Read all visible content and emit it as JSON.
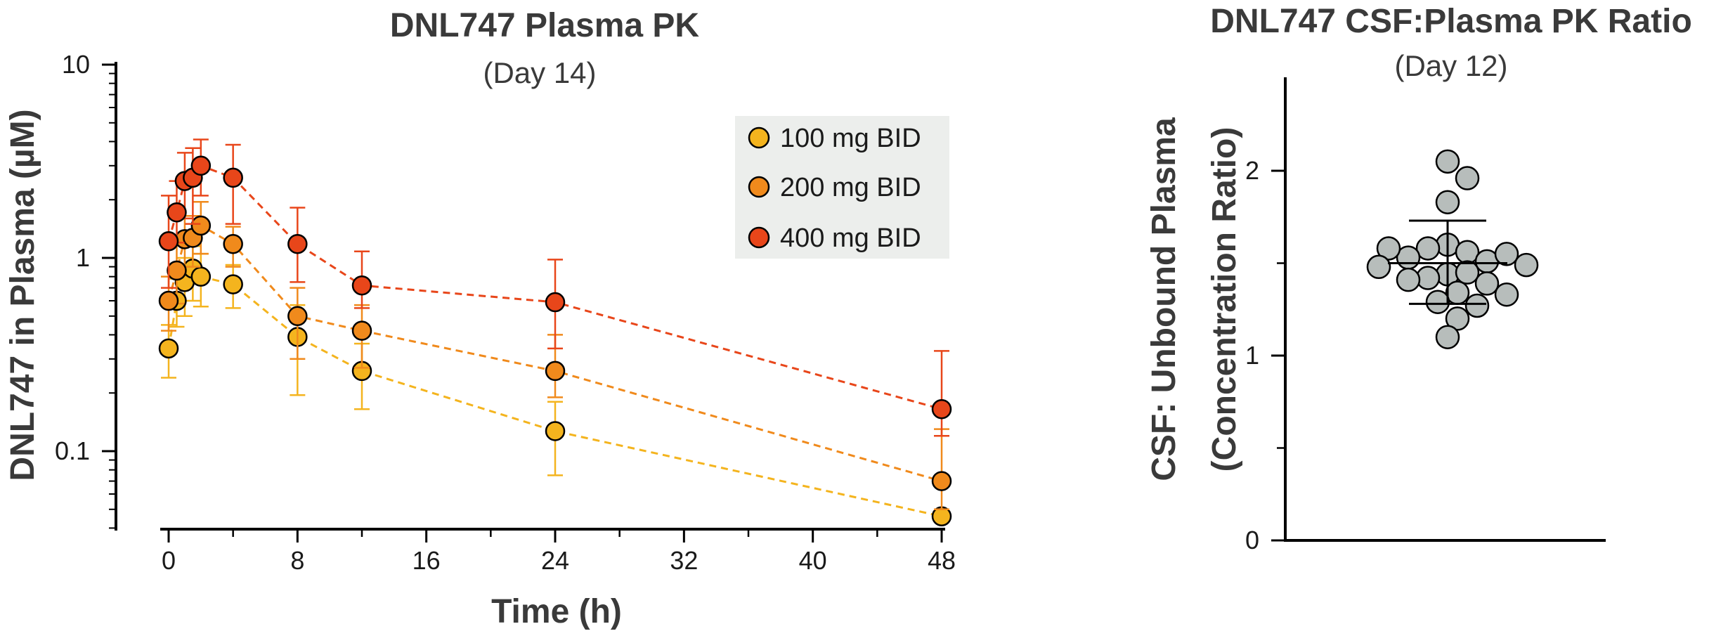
{
  "chart_data": [
    {
      "type": "line",
      "title": "DNL747 Plasma PK",
      "subtitle": "(Day 14)",
      "xlabel": "Time (h)",
      "ylabel": "DNL747 in Plasma (µM)",
      "yscale": "log",
      "xlim": [
        0,
        48
      ],
      "ylim": [
        0.04,
        10
      ],
      "xticks": [
        0,
        8,
        16,
        24,
        32,
        40,
        48
      ],
      "xtick_labels": [
        "0",
        "8",
        "16",
        "24",
        "32",
        "40",
        "48"
      ],
      "yticks": [
        0.1,
        1,
        10
      ],
      "ytick_labels": [
        "0.1",
        "1",
        "10"
      ],
      "legend_position": "top-right",
      "series": [
        {
          "name": "100 mg BID",
          "color": "#f4b41e",
          "x": [
            0,
            0.5,
            1,
            1.5,
            2,
            4,
            8,
            12,
            24,
            48
          ],
          "y": [
            0.34,
            0.6,
            0.75,
            0.88,
            0.8,
            0.73,
            0.39,
            0.26,
            0.127,
            0.046
          ],
          "y_err_low": [
            0.24,
            0.44,
            0.5,
            0.6,
            0.56,
            0.55,
            0.195,
            0.165,
            0.075,
            0.045
          ],
          "y_err_high": [
            0.45,
            0.78,
            1.0,
            1.15,
            1.05,
            0.92,
            0.57,
            0.36,
            0.18,
            0.047
          ]
        },
        {
          "name": "200 mg BID",
          "color": "#f08a1c",
          "x": [
            0,
            0.5,
            1,
            1.5,
            2,
            4,
            8,
            12,
            24,
            48
          ],
          "y": [
            0.6,
            0.86,
            1.25,
            1.27,
            1.47,
            1.18,
            0.5,
            0.42,
            0.26,
            0.07
          ],
          "y_err_low": [
            0.42,
            0.58,
            0.9,
            0.9,
            1.05,
            0.9,
            0.3,
            0.27,
            0.19,
            0.05
          ],
          "y_err_high": [
            0.8,
            1.2,
            1.65,
            1.65,
            1.95,
            1.45,
            0.7,
            0.57,
            0.4,
            0.13
          ]
        },
        {
          "name": "400 mg BID",
          "color": "#e8461a",
          "x": [
            0,
            0.5,
            1,
            1.5,
            2,
            4,
            8,
            12,
            24,
            48
          ],
          "y": [
            1.22,
            1.72,
            2.5,
            2.6,
            3.0,
            2.6,
            1.18,
            0.72,
            0.59,
            0.165
          ],
          "y_err_low": [
            0.7,
            1.2,
            1.6,
            1.5,
            2.1,
            1.5,
            0.75,
            0.55,
            0.34,
            0.12
          ],
          "y_err_high": [
            2.1,
            2.5,
            3.5,
            3.7,
            4.1,
            3.85,
            1.82,
            1.08,
            0.98,
            0.33
          ]
        }
      ]
    },
    {
      "type": "scatter",
      "title": "DNL747 CSF:Plasma PK Ratio",
      "subtitle": "(Day 12)",
      "ylabel_line1": "CSF: Unbound Plasma",
      "ylabel_line2": "(Concentration Ratio)",
      "ylim": [
        0,
        2.5
      ],
      "yticks": [
        0,
        1,
        2
      ],
      "ytick_labels": [
        "0",
        "1",
        "2"
      ],
      "point_color": "#b7bdbb",
      "mean": 1.5,
      "sd_low": 1.28,
      "sd_high": 1.73,
      "points": [
        2.05,
        1.96,
        1.83,
        1.6,
        1.56,
        1.58,
        1.51,
        1.53,
        1.55,
        1.58,
        1.44,
        1.45,
        1.42,
        1.48,
        1.49,
        1.39,
        1.41,
        1.34,
        1.33,
        1.29,
        1.27,
        1.2,
        1.1
      ]
    }
  ]
}
